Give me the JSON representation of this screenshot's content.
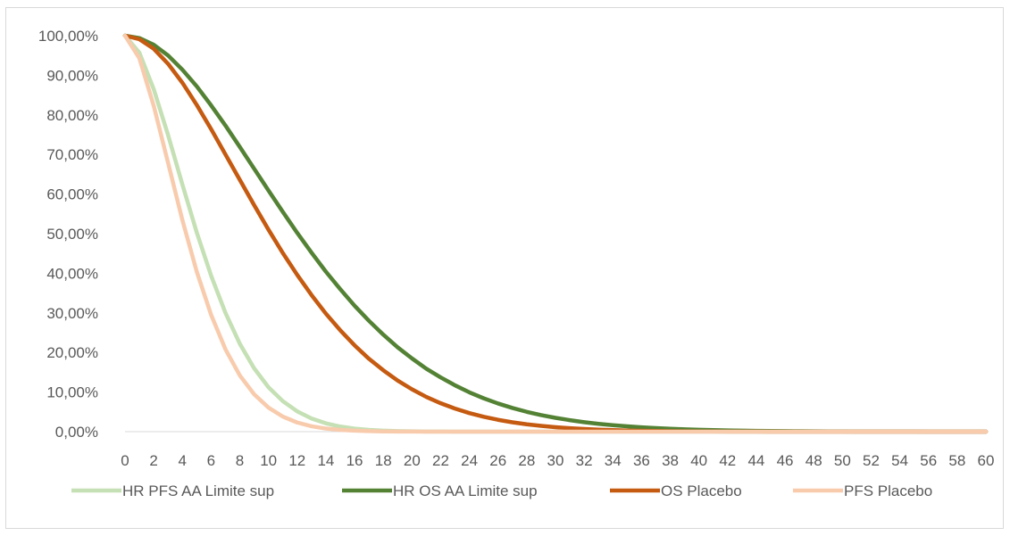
{
  "chart_data": {
    "type": "line",
    "title": "",
    "xlabel": "",
    "ylabel": "",
    "xlim": [
      0,
      60
    ],
    "ylim": [
      0,
      100
    ],
    "x_ticks": [
      0,
      2,
      4,
      6,
      8,
      10,
      12,
      14,
      16,
      18,
      20,
      22,
      24,
      26,
      28,
      30,
      32,
      34,
      36,
      38,
      40,
      42,
      44,
      46,
      48,
      50,
      52,
      54,
      56,
      58,
      60
    ],
    "y_ticks": [
      0,
      10,
      20,
      30,
      40,
      50,
      60,
      70,
      80,
      90,
      100
    ],
    "y_tick_labels": [
      "0,00%",
      "10,00%",
      "20,00%",
      "30,00%",
      "40,00%",
      "50,00%",
      "60,00%",
      "70,00%",
      "80,00%",
      "90,00%",
      "100,00%"
    ],
    "grid": false,
    "legend_position": "bottom",
    "x": [
      0,
      1,
      2,
      3,
      4,
      5,
      6,
      7,
      8,
      9,
      10,
      11,
      12,
      13,
      14,
      15,
      16,
      17,
      18,
      19,
      20,
      21,
      22,
      23,
      24,
      25,
      26,
      27,
      28,
      29,
      30,
      31,
      32,
      33,
      34,
      35,
      36,
      37,
      38,
      39,
      40,
      41,
      42,
      43,
      44,
      45,
      46,
      47,
      48,
      49,
      50,
      51,
      52,
      53,
      54,
      55,
      56,
      57,
      58,
      59,
      60
    ],
    "series": [
      {
        "name": "HR PFS AA Limite sup",
        "color": "#c5e0b4",
        "values": [
          100,
          95.7,
          86.5,
          74.9,
          62.4,
          50.3,
          39.4,
          30.0,
          22.2,
          16.0,
          11.2,
          7.7,
          5.13,
          3.33,
          2.1,
          1.29,
          0.77,
          0.45,
          0.26,
          0.14,
          0.08,
          0.04,
          0.02,
          0.01,
          0.01,
          0,
          0,
          0,
          0,
          0,
          0,
          0,
          0,
          0,
          0,
          0,
          0,
          0,
          0,
          0,
          0,
          0,
          0,
          0,
          0,
          0,
          0,
          0,
          0,
          0,
          0,
          0,
          0,
          0,
          0,
          0,
          0,
          0,
          0,
          0,
          0
        ]
      },
      {
        "name": "HR OS AA Limite sup",
        "color": "#548235",
        "values": [
          100,
          99.4,
          97.7,
          95.0,
          91.4,
          87.2,
          82.4,
          77.3,
          71.9,
          66.4,
          60.9,
          55.5,
          50.2,
          45.2,
          40.4,
          36.0,
          31.8,
          28.0,
          24.5,
          21.3,
          18.5,
          15.9,
          13.7,
          11.7,
          9.93,
          8.42,
          7.11,
          5.98,
          5.01,
          4.19,
          3.49,
          2.9,
          2.4,
          1.98,
          1.63,
          1.34,
          1.1,
          0.9,
          0.73,
          0.6,
          0.48,
          0.39,
          0.32,
          0.26,
          0.21,
          0.17,
          0.13,
          0.11,
          0.09,
          0.07,
          0.06,
          0.04,
          0.04,
          0.03,
          0.02,
          0.02,
          0.01,
          0.01,
          0.01,
          0.01,
          0.01
        ]
      },
      {
        "name": "OS Placebo",
        "color": "#c55a11",
        "values": [
          100,
          99.1,
          96.7,
          92.9,
          88.1,
          82.5,
          76.4,
          70.0,
          63.6,
          57.2,
          51.0,
          45.1,
          39.6,
          34.5,
          29.8,
          25.6,
          21.8,
          18.4,
          15.5,
          12.9,
          10.7,
          8.77,
          7.17,
          5.82,
          4.69,
          3.76,
          2.99,
          2.37,
          1.86,
          1.46,
          1.13,
          0.87,
          0.67,
          0.51,
          0.39,
          0.29,
          0.22,
          0.16,
          0.12,
          0.09,
          0.07,
          0.05,
          0.04,
          0.03,
          0.02,
          0.01,
          0.01,
          0.01,
          0,
          0,
          0,
          0,
          0,
          0,
          0,
          0,
          0,
          0,
          0,
          0,
          0
        ]
      },
      {
        "name": "PFS Placebo",
        "color": "#f8cbad",
        "values": [
          100,
          94.3,
          82.3,
          67.9,
          53.4,
          40.4,
          29.5,
          20.8,
          14.2,
          9.43,
          6.07,
          3.8,
          2.31,
          1.36,
          0.78,
          0.44,
          0.24,
          0.13,
          0.07,
          0.03,
          0.02,
          0.01,
          0,
          0,
          0,
          0,
          0,
          0,
          0,
          0,
          0,
          0,
          0,
          0,
          0,
          0,
          0,
          0,
          0,
          0,
          0,
          0,
          0,
          0,
          0,
          0,
          0,
          0,
          0,
          0,
          0,
          0,
          0,
          0,
          0,
          0,
          0,
          0,
          0,
          0,
          0
        ]
      }
    ]
  }
}
